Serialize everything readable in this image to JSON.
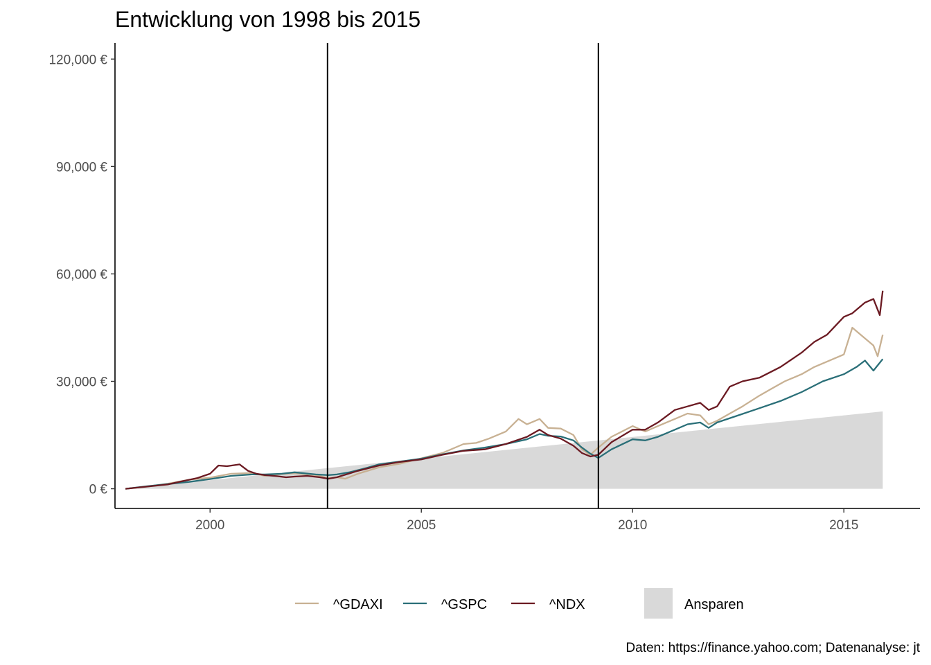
{
  "chart_data": {
    "type": "line",
    "title": "Entwicklung von 1998 bis 2015",
    "caption": "Daten: https://finance.yahoo.com; Datenanalyse: jt",
    "xlim": [
      1997.75,
      2016.8
    ],
    "ylim": [
      -5500,
      124500
    ],
    "x_ticks": [
      2000,
      2005,
      2010,
      2015
    ],
    "y_ticks": [
      0,
      30000,
      60000,
      90000,
      120000
    ],
    "y_tick_labels": [
      "0 €",
      "30,000 €",
      "60,000 €",
      "90,000 €",
      "120,000 €"
    ],
    "vlines": [
      2002.78,
      2009.19
    ],
    "grid": false,
    "legend_position": "bottom",
    "colors": {
      "^GDAXI": "#c8b193",
      "^GSPC": "#2a6f78",
      "^NDX": "#6b1a22",
      "Ansparen": "#d9d9d9",
      "vline": "#000000"
    },
    "area": {
      "name": "Ansparen",
      "x": [
        1998.0,
        2015.92
      ],
      "y": [
        0,
        21600
      ]
    },
    "series": [
      {
        "name": "^GDAXI",
        "x": [
          1998.0,
          1998.5,
          1999.0,
          1999.5,
          2000.0,
          2000.5,
          2001.0,
          2001.3,
          2001.7,
          2002.0,
          2002.5,
          2002.8,
          2003.0,
          2003.2,
          2003.5,
          2004.0,
          2004.5,
          2005.0,
          2005.5,
          2006.0,
          2006.3,
          2006.6,
          2007.0,
          2007.3,
          2007.5,
          2007.8,
          2008.0,
          2008.3,
          2008.6,
          2008.8,
          2009.0,
          2009.19,
          2009.5,
          2010.0,
          2010.3,
          2010.6,
          2011.0,
          2011.3,
          2011.6,
          2011.8,
          2012.0,
          2012.3,
          2012.6,
          2013.0,
          2013.3,
          2013.6,
          2014.0,
          2014.3,
          2014.6,
          2015.0,
          2015.2,
          2015.5,
          2015.7,
          2015.8,
          2015.92
        ],
        "y": [
          0,
          600,
          1400,
          2500,
          3100,
          4200,
          4400,
          3600,
          4100,
          4300,
          3800,
          3000,
          3200,
          2800,
          4200,
          6000,
          7000,
          8500,
          10000,
          12500,
          12800,
          14000,
          16000,
          19500,
          18000,
          19500,
          17000,
          16800,
          15000,
          11000,
          9500,
          11500,
          14500,
          17500,
          16000,
          17500,
          19500,
          21000,
          20500,
          18000,
          19000,
          21000,
          23000,
          26000,
          28000,
          30000,
          32000,
          34000,
          35500,
          37500,
          45000,
          42000,
          40000,
          37000,
          43000
        ]
      },
      {
        "name": "^GSPC",
        "x": [
          1998.0,
          1998.5,
          1999.0,
          1999.5,
          2000.0,
          2000.5,
          2001.0,
          2001.3,
          2001.7,
          2002.0,
          2002.5,
          2002.8,
          2003.0,
          2003.3,
          2003.7,
          2004.0,
          2004.5,
          2005.0,
          2005.5,
          2006.0,
          2006.5,
          2007.0,
          2007.5,
          2007.8,
          2008.0,
          2008.3,
          2008.6,
          2008.8,
          2009.0,
          2009.19,
          2009.5,
          2010.0,
          2010.3,
          2010.6,
          2011.0,
          2011.3,
          2011.6,
          2011.8,
          2012.0,
          2012.5,
          2013.0,
          2013.5,
          2014.0,
          2014.5,
          2015.0,
          2015.3,
          2015.5,
          2015.7,
          2015.92
        ],
        "y": [
          0,
          700,
          1300,
          1900,
          2700,
          3600,
          4000,
          4000,
          4200,
          4600,
          4000,
          3800,
          4000,
          4600,
          5800,
          6800,
          7600,
          8400,
          9600,
          10700,
          11500,
          12500,
          13800,
          15300,
          14800,
          14600,
          13500,
          11500,
          9800,
          8600,
          11000,
          13800,
          13500,
          14500,
          16500,
          18000,
          18500,
          17000,
          18500,
          20500,
          22500,
          24500,
          27000,
          30000,
          32000,
          34000,
          35800,
          33000,
          36200
        ]
      },
      {
        "name": "^NDX",
        "x": [
          1998.0,
          1998.5,
          1999.0,
          1999.3,
          1999.7,
          2000.0,
          2000.2,
          2000.4,
          2000.7,
          2000.9,
          2001.1,
          2001.3,
          2001.6,
          2001.8,
          2002.0,
          2002.3,
          2002.6,
          2002.8,
          2003.0,
          2003.5,
          2004.0,
          2004.5,
          2005.0,
          2005.5,
          2006.0,
          2006.5,
          2007.0,
          2007.5,
          2007.8,
          2008.0,
          2008.3,
          2008.6,
          2008.8,
          2009.0,
          2009.19,
          2009.5,
          2010.0,
          2010.3,
          2010.6,
          2011.0,
          2011.3,
          2011.6,
          2011.8,
          2012.0,
          2012.3,
          2012.6,
          2013.0,
          2013.5,
          2014.0,
          2014.3,
          2014.6,
          2015.0,
          2015.2,
          2015.5,
          2015.7,
          2015.85,
          2015.92
        ],
        "y": [
          0,
          600,
          1200,
          2000,
          3000,
          4200,
          6500,
          6300,
          6800,
          5000,
          4200,
          3800,
          3500,
          3200,
          3400,
          3600,
          3200,
          2800,
          3200,
          5000,
          6500,
          7500,
          8200,
          9500,
          10600,
          11000,
          12500,
          14500,
          16500,
          15000,
          14000,
          12000,
          10000,
          9000,
          9500,
          13000,
          16500,
          16500,
          18500,
          22000,
          23000,
          24000,
          22000,
          23000,
          28500,
          30000,
          31000,
          34000,
          38000,
          41000,
          43000,
          48000,
          49000,
          52000,
          53000,
          48500,
          55300
        ]
      }
    ]
  }
}
